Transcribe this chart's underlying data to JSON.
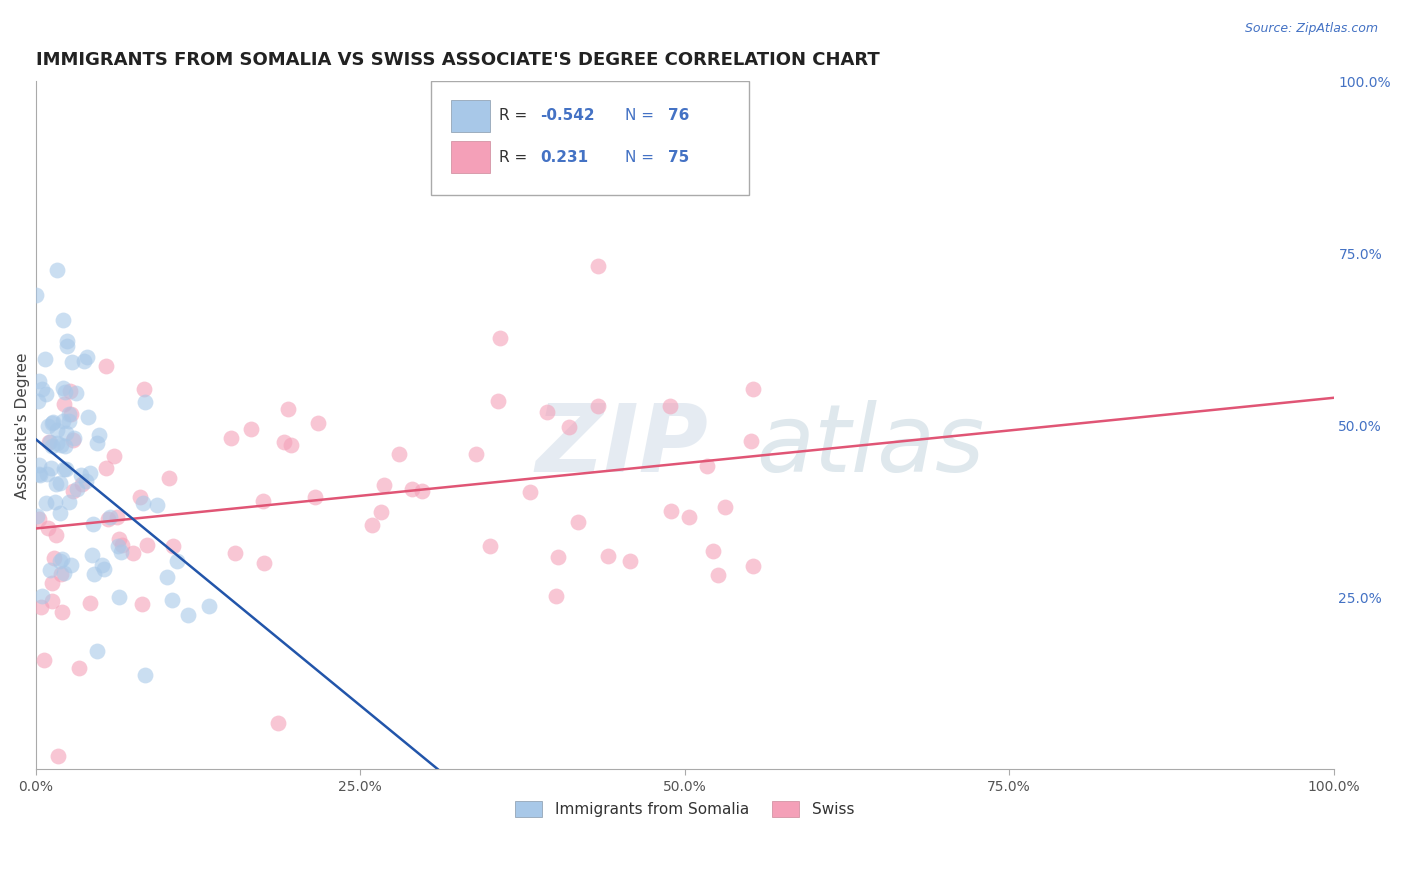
{
  "title": "IMMIGRANTS FROM SOMALIA VS SWISS ASSOCIATE'S DEGREE CORRELATION CHART",
  "source_text": "Source: ZipAtlas.com",
  "ylabel": "Associate's Degree",
  "xlim": [
    0.0,
    100.0
  ],
  "ylim": [
    0.0,
    100.0
  ],
  "blue_color": "#a8c8e8",
  "pink_color": "#f4a0b8",
  "blue_line_color": "#2255aa",
  "pink_line_color": "#e05575",
  "title_fontsize": 13,
  "axis_label_fontsize": 11,
  "tick_fontsize": 10,
  "background_color": "#ffffff",
  "grid_color": "#c0cfe0",
  "blue_line_x0": 0,
  "blue_line_y0": 48,
  "blue_line_x1": 31,
  "blue_line_y1": 0,
  "pink_line_x0": 0,
  "pink_line_y0": 35,
  "pink_line_x1": 100,
  "pink_line_y1": 54
}
